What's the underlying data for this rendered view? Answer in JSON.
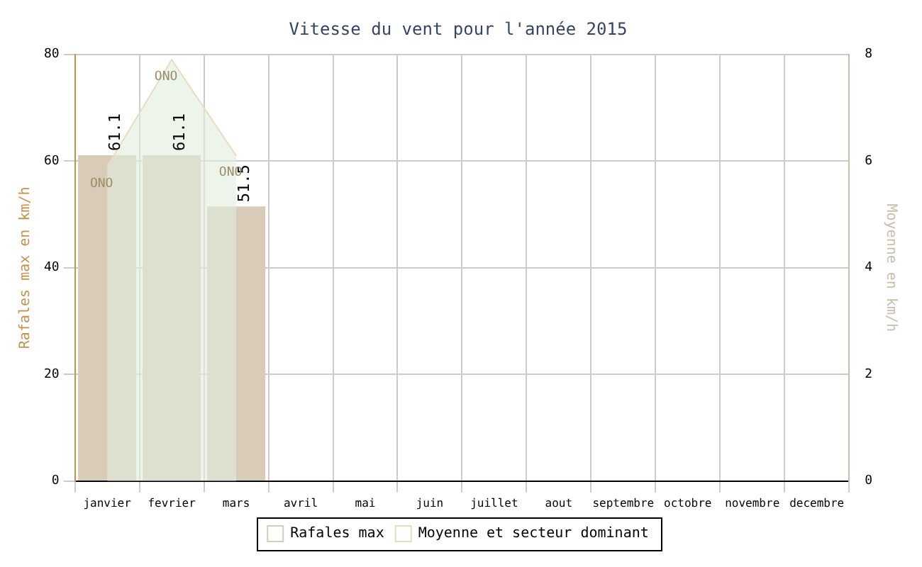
{
  "chart_data": {
    "type": "bar",
    "title": "Vitesse du vent pour l'année 2015",
    "categories": [
      "janvier",
      "fevrier",
      "mars",
      "avril",
      "mai",
      "juin",
      "juillet",
      "aout",
      "septembre",
      "octobre",
      "novembre",
      "decembre"
    ],
    "series": [
      {
        "name": "Rafales max",
        "color": "#d8cbb8",
        "values": [
          61.1,
          61.1,
          51.5,
          null,
          null,
          null,
          null,
          null,
          null,
          null,
          null,
          null
        ],
        "value_labels": [
          "61.1",
          "61.1",
          "51.5",
          null,
          null,
          null,
          null,
          null,
          null,
          null,
          null,
          null
        ]
      },
      {
        "name": "Moyenne et secteur dominant",
        "type": "area",
        "axis": "y2",
        "color": "#e8dcc0",
        "values": [
          5.9,
          7.9,
          6.1,
          null,
          null,
          null,
          null,
          null,
          null,
          null,
          null,
          null
        ]
      }
    ],
    "ylabel": "Rafales max en km/h",
    "y2label": "Moyenne en km/h",
    "ylim": [
      0,
      80
    ],
    "yticks": [
      0,
      20,
      40,
      60,
      80
    ],
    "y2lim": [
      0,
      8
    ],
    "y2ticks": [
      0,
      2,
      4,
      6,
      8
    ],
    "annotations": [
      "ONO",
      "ONO",
      "ONO"
    ],
    "grid": true,
    "legend": "bottom"
  }
}
